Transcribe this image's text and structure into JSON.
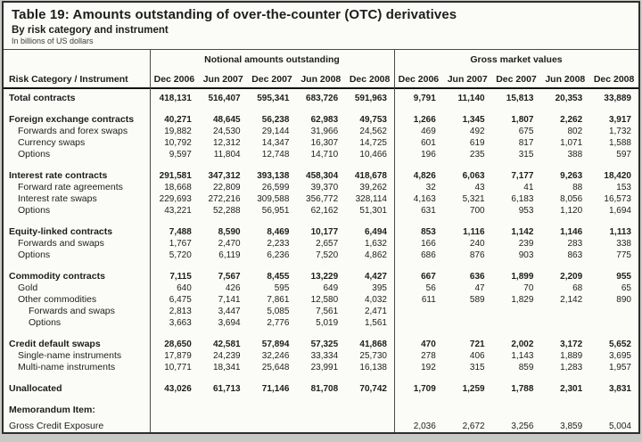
{
  "title": "Table 19: Amounts outstanding of over-the-counter (OTC) derivatives",
  "subtitle": "By risk category and instrument",
  "unit_note": "In billions of US dollars",
  "table": {
    "row_header": "Risk Category / Instrument",
    "group_headers": [
      "Notional amounts outstanding",
      "Gross market values"
    ],
    "columns": [
      "Dec 2006",
      "Jun 2007",
      "Dec 2007",
      "Jun 2008",
      "Dec 2008"
    ],
    "rows": [
      {
        "label": "Total contracts",
        "indent": 0,
        "bold": true,
        "spacer_before": false,
        "notional": [
          "418,131",
          "516,407",
          "595,341",
          "683,726",
          "591,963"
        ],
        "gmv": [
          "9,791",
          "11,140",
          "15,813",
          "20,353",
          "33,889"
        ]
      },
      {
        "label": "Foreign exchange contracts",
        "indent": 0,
        "bold": true,
        "spacer_before": true,
        "notional": [
          "40,271",
          "48,645",
          "56,238",
          "62,983",
          "49,753"
        ],
        "gmv": [
          "1,266",
          "1,345",
          "1,807",
          "2,262",
          "3,917"
        ]
      },
      {
        "label": "Forwards and forex swaps",
        "indent": 1,
        "bold": false,
        "spacer_before": false,
        "notional": [
          "19,882",
          "24,530",
          "29,144",
          "31,966",
          "24,562"
        ],
        "gmv": [
          "469",
          "492",
          "675",
          "802",
          "1,732"
        ]
      },
      {
        "label": "Currency swaps",
        "indent": 1,
        "bold": false,
        "spacer_before": false,
        "notional": [
          "10,792",
          "12,312",
          "14,347",
          "16,307",
          "14,725"
        ],
        "gmv": [
          "601",
          "619",
          "817",
          "1,071",
          "1,588"
        ]
      },
      {
        "label": "Options",
        "indent": 1,
        "bold": false,
        "spacer_before": false,
        "notional": [
          "9,597",
          "11,804",
          "12,748",
          "14,710",
          "10,466"
        ],
        "gmv": [
          "196",
          "235",
          "315",
          "388",
          "597"
        ]
      },
      {
        "label": "Interest rate contracts",
        "indent": 0,
        "bold": true,
        "spacer_before": true,
        "notional": [
          "291,581",
          "347,312",
          "393,138",
          "458,304",
          "418,678"
        ],
        "gmv": [
          "4,826",
          "6,063",
          "7,177",
          "9,263",
          "18,420"
        ]
      },
      {
        "label": "Forward rate agreements",
        "indent": 1,
        "bold": false,
        "spacer_before": false,
        "notional": [
          "18,668",
          "22,809",
          "26,599",
          "39,370",
          "39,262"
        ],
        "gmv": [
          "32",
          "43",
          "41",
          "88",
          "153"
        ]
      },
      {
        "label": "Interest rate swaps",
        "indent": 1,
        "bold": false,
        "spacer_before": false,
        "notional": [
          "229,693",
          "272,216",
          "309,588",
          "356,772",
          "328,114"
        ],
        "gmv": [
          "4,163",
          "5,321",
          "6,183",
          "8,056",
          "16,573"
        ]
      },
      {
        "label": "Options",
        "indent": 1,
        "bold": false,
        "spacer_before": false,
        "notional": [
          "43,221",
          "52,288",
          "56,951",
          "62,162",
          "51,301"
        ],
        "gmv": [
          "631",
          "700",
          "953",
          "1,120",
          "1,694"
        ]
      },
      {
        "label": "Equity-linked contracts",
        "indent": 0,
        "bold": true,
        "spacer_before": true,
        "notional": [
          "7,488",
          "8,590",
          "8,469",
          "10,177",
          "6,494"
        ],
        "gmv": [
          "853",
          "1,116",
          "1,142",
          "1,146",
          "1,113"
        ]
      },
      {
        "label": "Forwards and swaps",
        "indent": 1,
        "bold": false,
        "spacer_before": false,
        "notional": [
          "1,767",
          "2,470",
          "2,233",
          "2,657",
          "1,632"
        ],
        "gmv": [
          "166",
          "240",
          "239",
          "283",
          "338"
        ]
      },
      {
        "label": "Options",
        "indent": 1,
        "bold": false,
        "spacer_before": false,
        "notional": [
          "5,720",
          "6,119",
          "6,236",
          "7,520",
          "4,862"
        ],
        "gmv": [
          "686",
          "876",
          "903",
          "863",
          "775"
        ]
      },
      {
        "label": "Commodity contracts",
        "indent": 0,
        "bold": true,
        "spacer_before": true,
        "notional": [
          "7,115",
          "7,567",
          "8,455",
          "13,229",
          "4,427"
        ],
        "gmv": [
          "667",
          "636",
          "1,899",
          "2,209",
          "955"
        ]
      },
      {
        "label": "Gold",
        "indent": 1,
        "bold": false,
        "spacer_before": false,
        "notional": [
          "640",
          "426",
          "595",
          "649",
          "395"
        ],
        "gmv": [
          "56",
          "47",
          "70",
          "68",
          "65"
        ]
      },
      {
        "label": "Other commodities",
        "indent": 1,
        "bold": false,
        "spacer_before": false,
        "notional": [
          "6,475",
          "7,141",
          "7,861",
          "12,580",
          "4,032"
        ],
        "gmv": [
          "611",
          "589",
          "1,829",
          "2,142",
          "890"
        ]
      },
      {
        "label": "Forwards and swaps",
        "indent": 2,
        "bold": false,
        "spacer_before": false,
        "notional": [
          "2,813",
          "3,447",
          "5,085",
          "7,561",
          "2,471"
        ],
        "gmv": [
          "",
          "",
          "",
          "",
          ""
        ]
      },
      {
        "label": "Options",
        "indent": 2,
        "bold": false,
        "spacer_before": false,
        "notional": [
          "3,663",
          "3,694",
          "2,776",
          "5,019",
          "1,561"
        ],
        "gmv": [
          "",
          "",
          "",
          "",
          ""
        ]
      },
      {
        "label": "Credit default swaps",
        "indent": 0,
        "bold": true,
        "spacer_before": true,
        "notional": [
          "28,650",
          "42,581",
          "57,894",
          "57,325",
          "41,868"
        ],
        "gmv": [
          "470",
          "721",
          "2,002",
          "3,172",
          "5,652"
        ]
      },
      {
        "label": "Single-name instruments",
        "indent": 1,
        "bold": false,
        "spacer_before": false,
        "notional": [
          "17,879",
          "24,239",
          "32,246",
          "33,334",
          "25,730"
        ],
        "gmv": [
          "278",
          "406",
          "1,143",
          "1,889",
          "3,695"
        ]
      },
      {
        "label": "Multi-name instruments",
        "indent": 1,
        "bold": false,
        "spacer_before": false,
        "notional": [
          "10,771",
          "18,341",
          "25,648",
          "23,991",
          "16,138"
        ],
        "gmv": [
          "192",
          "315",
          "859",
          "1,283",
          "1,957"
        ]
      },
      {
        "label": "Unallocated",
        "indent": 0,
        "bold": true,
        "spacer_before": true,
        "notional": [
          "43,026",
          "61,713",
          "71,146",
          "81,708",
          "70,742"
        ],
        "gmv": [
          "1,709",
          "1,259",
          "1,788",
          "2,301",
          "3,831"
        ]
      },
      {
        "label": "Memorandum Item:",
        "indent": 0,
        "bold": true,
        "spacer_before": true,
        "notional": [
          "",
          "",
          "",
          "",
          ""
        ],
        "gmv": [
          "",
          "",
          "",
          "",
          ""
        ]
      },
      {
        "label": "Gross Credit Exposure",
        "indent": 0,
        "bold": false,
        "spacer_before": false,
        "small_spacer_before": true,
        "notional": [
          "",
          "",
          "",
          "",
          ""
        ],
        "gmv": [
          "2,036",
          "2,672",
          "3,256",
          "3,859",
          "5,004"
        ]
      }
    ]
  }
}
